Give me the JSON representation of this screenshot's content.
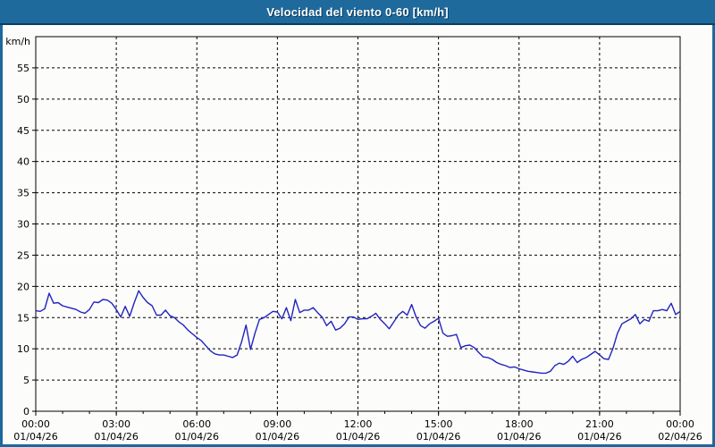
{
  "colors": {
    "titlebar_bg": "#1e6a9d",
    "titlebar_edge": "#0c3d60",
    "frame_border": "#1d699c",
    "page_bg": "#fcfdfa",
    "plot_border": "#000000",
    "grid": "#000000",
    "line": "#2222c0",
    "text": "#000000"
  },
  "header": {
    "note": "title is bound from chart_data.title"
  },
  "chart_data": {
    "type": "line",
    "title": "Velocidad del viento 0-60 [km/h]",
    "xlabel": "",
    "ylabel": "km/h",
    "ylim": [
      0,
      60
    ],
    "yticks": [
      0,
      5,
      10,
      15,
      20,
      25,
      30,
      35,
      40,
      45,
      50,
      55
    ],
    "grid": "dashed-black-every-5-units-and-every-3-hours",
    "legend": "none",
    "xticks": [
      {
        "time": "00:00",
        "date": "01/04/26",
        "minutes": 0
      },
      {
        "time": "03:00",
        "date": "01/04/26",
        "minutes": 180
      },
      {
        "time": "06:00",
        "date": "01/04/26",
        "minutes": 360
      },
      {
        "time": "09:00",
        "date": "01/04/26",
        "minutes": 540
      },
      {
        "time": "12:00",
        "date": "01/04/26",
        "minutes": 720
      },
      {
        "time": "15:00",
        "date": "01/04/26",
        "minutes": 900
      },
      {
        "time": "18:00",
        "date": "01/04/26",
        "minutes": 1080
      },
      {
        "time": "21:00",
        "date": "01/04/26",
        "minutes": 1260
      },
      {
        "time": "00:00",
        "date": "02/04/26",
        "minutes": 1440
      }
    ],
    "interval_minutes": 10,
    "line_color": "#2222c0",
    "series": [
      {
        "name": "Velocidad del viento [km/h]",
        "values": [
          16.1,
          16.0,
          16.4,
          18.9,
          17.3,
          17.4,
          16.9,
          16.7,
          16.5,
          16.3,
          15.9,
          15.7,
          16.3,
          17.5,
          17.4,
          17.9,
          17.8,
          17.3,
          16.3,
          15.1,
          16.8,
          15.2,
          17.4,
          19.3,
          18.2,
          17.4,
          16.9,
          15.4,
          15.4,
          16.2,
          15.3,
          15.0,
          14.3,
          13.8,
          13.0,
          12.4,
          11.8,
          11.3,
          10.5,
          9.7,
          9.2,
          9.0,
          9.0,
          8.8,
          8.6,
          9.0,
          11.1,
          13.8,
          9.9,
          12.5,
          14.7,
          15.0,
          15.5,
          16.0,
          15.9,
          14.8,
          16.6,
          14.5,
          17.9,
          15.8,
          16.2,
          16.2,
          16.6,
          15.8,
          15.1,
          13.7,
          14.4,
          13.0,
          13.3,
          14.0,
          15.1,
          15.1,
          14.7,
          14.8,
          14.8,
          15.2,
          15.7,
          14.7,
          14.0,
          13.2,
          14.3,
          15.4,
          16.0,
          15.4,
          17.1,
          15.1,
          13.7,
          13.3,
          14.0,
          14.4,
          14.9,
          12.5,
          12.0,
          12.1,
          12.3,
          10.2,
          10.5,
          10.6,
          10.2,
          9.4,
          8.7,
          8.6,
          8.3,
          7.8,
          7.5,
          7.3,
          7.0,
          7.1,
          6.8,
          6.6,
          6.4,
          6.3,
          6.2,
          6.1,
          6.1,
          6.4,
          7.3,
          7.7,
          7.5,
          8.0,
          8.8,
          7.8,
          8.3,
          8.6,
          9.1,
          9.6,
          9.0,
          8.4,
          8.3,
          10.1,
          12.5,
          14.0,
          14.4,
          14.8,
          15.5,
          14.0,
          14.7,
          14.4,
          16.1,
          16.1,
          16.3,
          16.1,
          17.3,
          15.5,
          16.0
        ]
      }
    ]
  }
}
